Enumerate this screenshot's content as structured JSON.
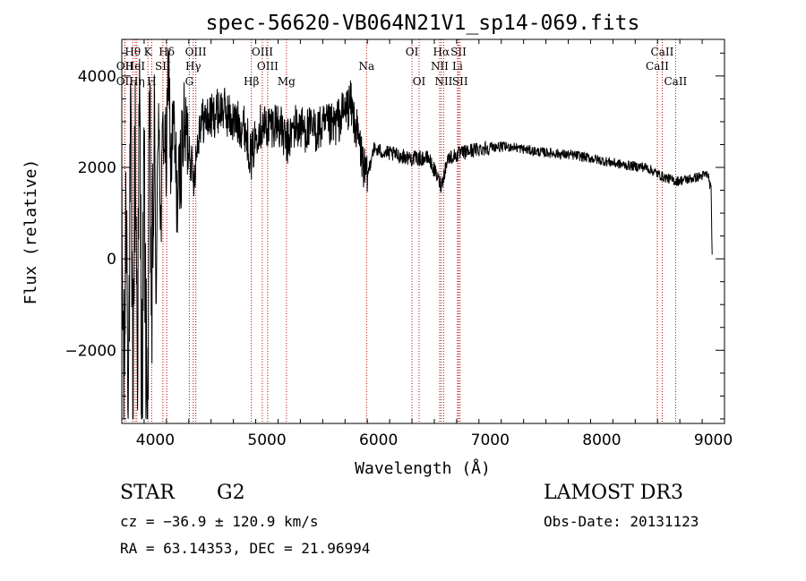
{
  "chart_data": {
    "type": "line",
    "title": "spec-56620-VB064N21V1_sp14-069.fits",
    "xlabel": "Wavelength (Å)",
    "ylabel": "Flux (relative)",
    "xlim": [
      3700,
      9100
    ],
    "ylim": [
      -3600,
      4800
    ],
    "xticks": [
      4000,
      5000,
      6000,
      7000,
      8000,
      9000
    ],
    "yticks": [
      -2000,
      0,
      2000,
      4000
    ],
    "spectrum_anchors": [
      [
        3700,
        600
      ],
      [
        3720,
        -3000
      ],
      [
        3740,
        1500
      ],
      [
        3760,
        -2500
      ],
      [
        3780,
        2500
      ],
      [
        3800,
        -3000
      ],
      [
        3820,
        2800
      ],
      [
        3840,
        -2000
      ],
      [
        3860,
        3500
      ],
      [
        3880,
        -3200
      ],
      [
        3900,
        2000
      ],
      [
        3920,
        -2800
      ],
      [
        3933,
        -3300
      ],
      [
        3950,
        3000
      ],
      [
        3968,
        -1500
      ],
      [
        3990,
        2500
      ],
      [
        4010,
        -800
      ],
      [
        4030,
        3800
      ],
      [
        4050,
        500
      ],
      [
        4070,
        3000
      ],
      [
        4101,
        2000
      ],
      [
        4120,
        4500
      ],
      [
        4140,
        1800
      ],
      [
        4160,
        3000
      ],
      [
        4200,
        1200
      ],
      [
        4250,
        2800
      ],
      [
        4300,
        2600
      ],
      [
        4340,
        1700
      ],
      [
        4400,
        3000
      ],
      [
        4500,
        3100
      ],
      [
        4600,
        3300
      ],
      [
        4700,
        3000
      ],
      [
        4800,
        2900
      ],
      [
        4861,
        2200
      ],
      [
        4920,
        2900
      ],
      [
        5000,
        2900
      ],
      [
        5100,
        3000
      ],
      [
        5175,
        2500
      ],
      [
        5250,
        2900
      ],
      [
        5400,
        2800
      ],
      [
        5600,
        2900
      ],
      [
        5750,
        3400
      ],
      [
        5830,
        2500
      ],
      [
        5893,
        1700
      ],
      [
        5950,
        2400
      ],
      [
        6100,
        2300
      ],
      [
        6300,
        2200
      ],
      [
        6450,
        2200
      ],
      [
        6563,
        1600
      ],
      [
        6620,
        2200
      ],
      [
        6800,
        2350
      ],
      [
        7000,
        2450
      ],
      [
        7200,
        2450
      ],
      [
        7400,
        2350
      ],
      [
        7600,
        2300
      ],
      [
        7800,
        2250
      ],
      [
        8000,
        2150
      ],
      [
        8200,
        2050
      ],
      [
        8400,
        2000
      ],
      [
        8542,
        1800
      ],
      [
        8662,
        1700
      ],
      [
        8800,
        1750
      ],
      [
        8950,
        1850
      ],
      [
        8980,
        1500
      ],
      [
        8990,
        0
      ]
    ],
    "line_markers": [
      {
        "label": "Hθ",
        "wave": 3798,
        "row": 1
      },
      {
        "label": "OII",
        "wave": 3727,
        "row": 2
      },
      {
        "label": "Hη",
        "wave": 3835,
        "row": 3
      },
      {
        "label": "OII",
        "wave": 3727,
        "row": 3
      },
      {
        "label": "HeI",
        "wave": 3820,
        "row": 2
      },
      {
        "label": "K",
        "wave": 3934,
        "row": 1
      },
      {
        "label": "SII",
        "wave": 4068,
        "row": 2
      },
      {
        "label": "H",
        "wave": 3968,
        "row": 3
      },
      {
        "label": "Hδ",
        "wave": 4102,
        "row": 1
      },
      {
        "label": "OIII",
        "wave": 4363,
        "row": 1
      },
      {
        "label": "Hγ",
        "wave": 4340,
        "row": 2
      },
      {
        "label": "G",
        "wave": 4305,
        "row": 3
      },
      {
        "label": "OIII",
        "wave": 4959,
        "row": 1
      },
      {
        "label": "OIII",
        "wave": 5007,
        "row": 2
      },
      {
        "label": "Hβ",
        "wave": 4861,
        "row": 3
      },
      {
        "label": "Mg",
        "wave": 5175,
        "row": 3
      },
      {
        "label": "Na",
        "wave": 5893,
        "row": 2
      },
      {
        "label": "OI",
        "wave": 6300,
        "row": 1
      },
      {
        "label": "OI",
        "wave": 6364,
        "row": 3
      },
      {
        "label": "Hα",
        "wave": 6563,
        "row": 1
      },
      {
        "label": "SII",
        "wave": 6717,
        "row": 1
      },
      {
        "label": "NII",
        "wave": 6548,
        "row": 2
      },
      {
        "label": "Li",
        "wave": 6708,
        "row": 2
      },
      {
        "label": "NII",
        "wave": 6584,
        "row": 3
      },
      {
        "label": "SII",
        "wave": 6731,
        "row": 3
      },
      {
        "label": "CaII",
        "wave": 8542,
        "row": 1
      },
      {
        "label": "CaII",
        "wave": 8498,
        "row": 2
      },
      {
        "label": "CaII",
        "wave": 8662,
        "row": 3
      }
    ]
  },
  "info": {
    "class": "STAR",
    "subclass": "G2",
    "survey": "LAMOST DR3",
    "cz": "cz = −36.9 ± 120.9 km/s",
    "obs_date": "Obs-Date: 20131123",
    "coords": "RA =  63.14353, DEC =  21.96994"
  }
}
